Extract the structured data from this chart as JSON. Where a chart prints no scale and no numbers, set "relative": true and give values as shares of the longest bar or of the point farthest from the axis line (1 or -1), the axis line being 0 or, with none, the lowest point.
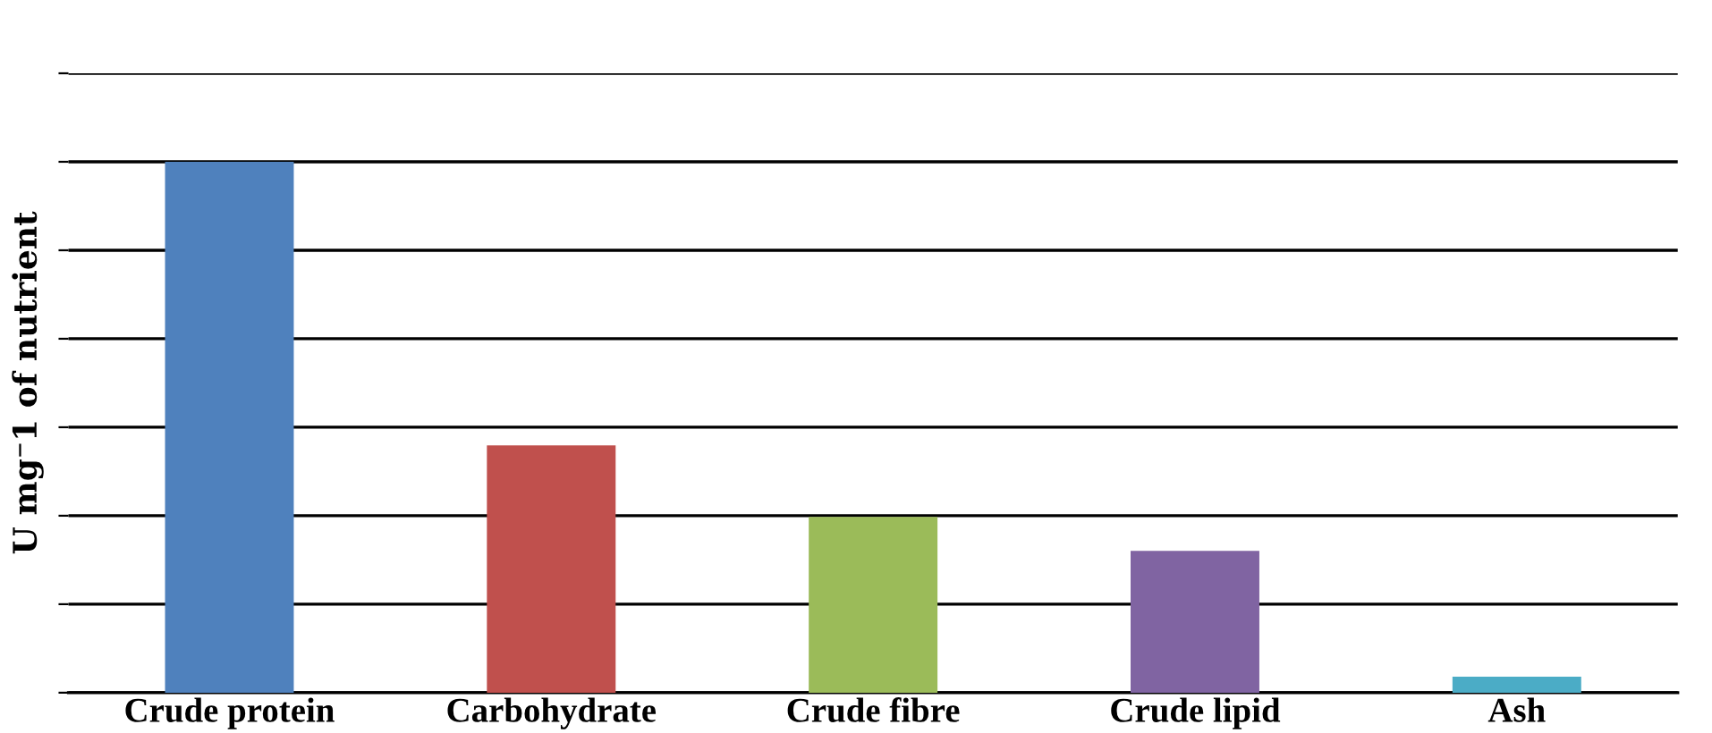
{
  "chart_data": {
    "type": "bar",
    "relative": true,
    "ylabel": "U mg⁻1 of nutrient",
    "categories": [
      "Crude protein",
      "Carbohydrate",
      "Crude fibre",
      "Crude lipid",
      "Ash"
    ],
    "values": [
      1,
      0.466,
      0.331,
      0.267,
      0.03
    ],
    "colors": [
      "#4f81bd",
      "#c0504d",
      "#9bbb59",
      "#8064a2",
      "#4bacc6"
    ],
    "grid": "y",
    "legend": false
  }
}
